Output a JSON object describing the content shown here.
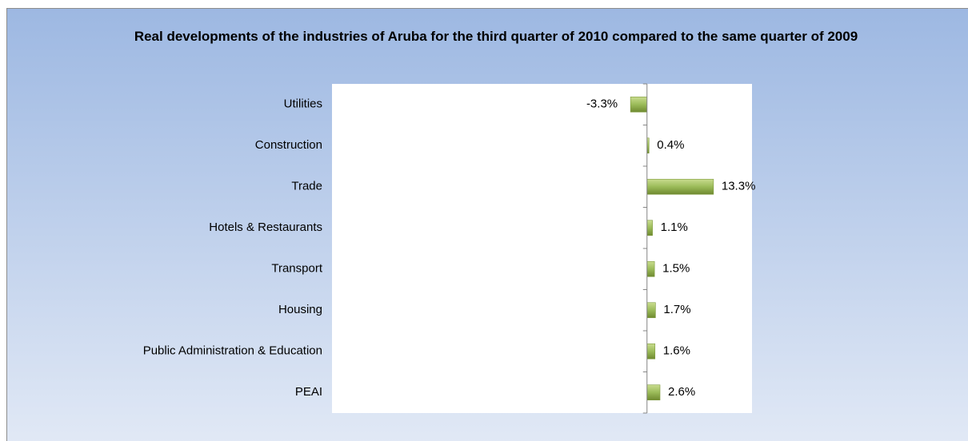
{
  "chart_data": {
    "type": "barh",
    "title": "Real developments of the industries of Aruba for the third quarter of 2010 compared to the same quarter of 2009",
    "categories": [
      "Utilities",
      "Construction",
      "Trade",
      "Hotels & Restaurants",
      "Transport",
      "Housing",
      "Public Administration & Education",
      "PEAI"
    ],
    "values": [
      -3.3,
      0.4,
      13.3,
      1.1,
      1.5,
      1.7,
      1.6,
      2.6
    ],
    "value_labels": [
      "-3.3%",
      "0.4%",
      "13.3%",
      "1.1%",
      "1.5%",
      "1.7%",
      "1.6%",
      "2.6%"
    ],
    "color": "#9bbb59",
    "xlim": [
      -63,
      21
    ]
  }
}
